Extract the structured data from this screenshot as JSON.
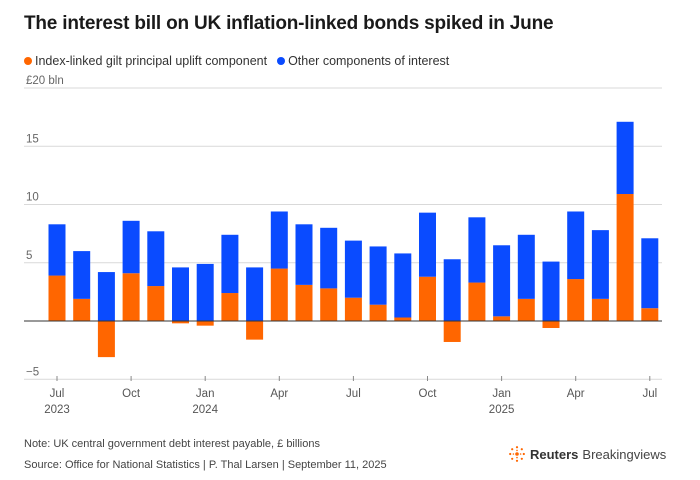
{
  "title": "The interest bill on UK inflation-linked bonds spiked in June",
  "legend": [
    {
      "label": "Index-linked gilt principal uplift component",
      "color": "#ff6600"
    },
    {
      "label": "Other components of interest",
      "color": "#0a4bff"
    }
  ],
  "footer": {
    "note": "Note: UK central government debt interest payable, £ billions",
    "source": "Source: Office for National Statistics | P. Thal Larsen | September 11, 2025",
    "brand_bold": "Reuters",
    "brand_light": "Breakingviews"
  },
  "chart_data": {
    "type": "bar",
    "stacked": true,
    "categories": [
      "Jul 2023",
      "Aug 2023",
      "Sep 2023",
      "Oct 2023",
      "Nov 2023",
      "Dec 2023",
      "Jan 2024",
      "Feb 2024",
      "Mar 2024",
      "Apr 2024",
      "May 2024",
      "Jun 2024",
      "Jul 2024",
      "Aug 2024",
      "Sep 2024",
      "Oct 2024",
      "Nov 2024",
      "Dec 2024",
      "Jan 2025",
      "Feb 2025",
      "Mar 2025",
      "Apr 2025",
      "May 2025",
      "Jun 2025",
      "Jul 2025"
    ],
    "series": [
      {
        "name": "Index-linked gilt principal uplift component",
        "color": "#ff6600",
        "values": [
          3.9,
          1.9,
          -3.1,
          4.1,
          3.0,
          -0.2,
          -0.4,
          2.4,
          -1.6,
          4.5,
          3.1,
          2.8,
          2.0,
          1.4,
          0.3,
          3.8,
          -1.8,
          3.3,
          0.4,
          1.9,
          -0.6,
          3.6,
          1.9,
          10.9,
          1.1
        ]
      },
      {
        "name": "Other components of interest",
        "color": "#0a4bff",
        "values": [
          4.4,
          4.1,
          4.2,
          4.5,
          4.7,
          4.6,
          4.9,
          5.0,
          4.6,
          4.9,
          5.2,
          5.2,
          4.9,
          5.0,
          5.5,
          5.5,
          5.3,
          5.6,
          6.1,
          5.5,
          5.1,
          5.8,
          5.9,
          6.2,
          6.0
        ]
      }
    ],
    "yticks": [
      {
        "value": 20,
        "label": "£20 bln"
      },
      {
        "value": 15,
        "label": "15"
      },
      {
        "value": 10,
        "label": "10"
      },
      {
        "value": 5,
        "label": "5"
      },
      {
        "value": 0,
        "label": ""
      },
      {
        "value": -5,
        "label": "−5"
      }
    ],
    "xticks": [
      {
        "index": 0,
        "label": "Jul",
        "year": "2023"
      },
      {
        "index": 3,
        "label": "Oct",
        "year": ""
      },
      {
        "index": 6,
        "label": "Jan",
        "year": "2024"
      },
      {
        "index": 9,
        "label": "Apr",
        "year": ""
      },
      {
        "index": 12,
        "label": "Jul",
        "year": ""
      },
      {
        "index": 15,
        "label": "Oct",
        "year": ""
      },
      {
        "index": 18,
        "label": "Jan",
        "year": "2025"
      },
      {
        "index": 21,
        "label": "Apr",
        "year": ""
      },
      {
        "index": 24,
        "label": "Jul",
        "year": ""
      }
    ],
    "ylim": [
      -5,
      20
    ],
    "grid": true
  }
}
